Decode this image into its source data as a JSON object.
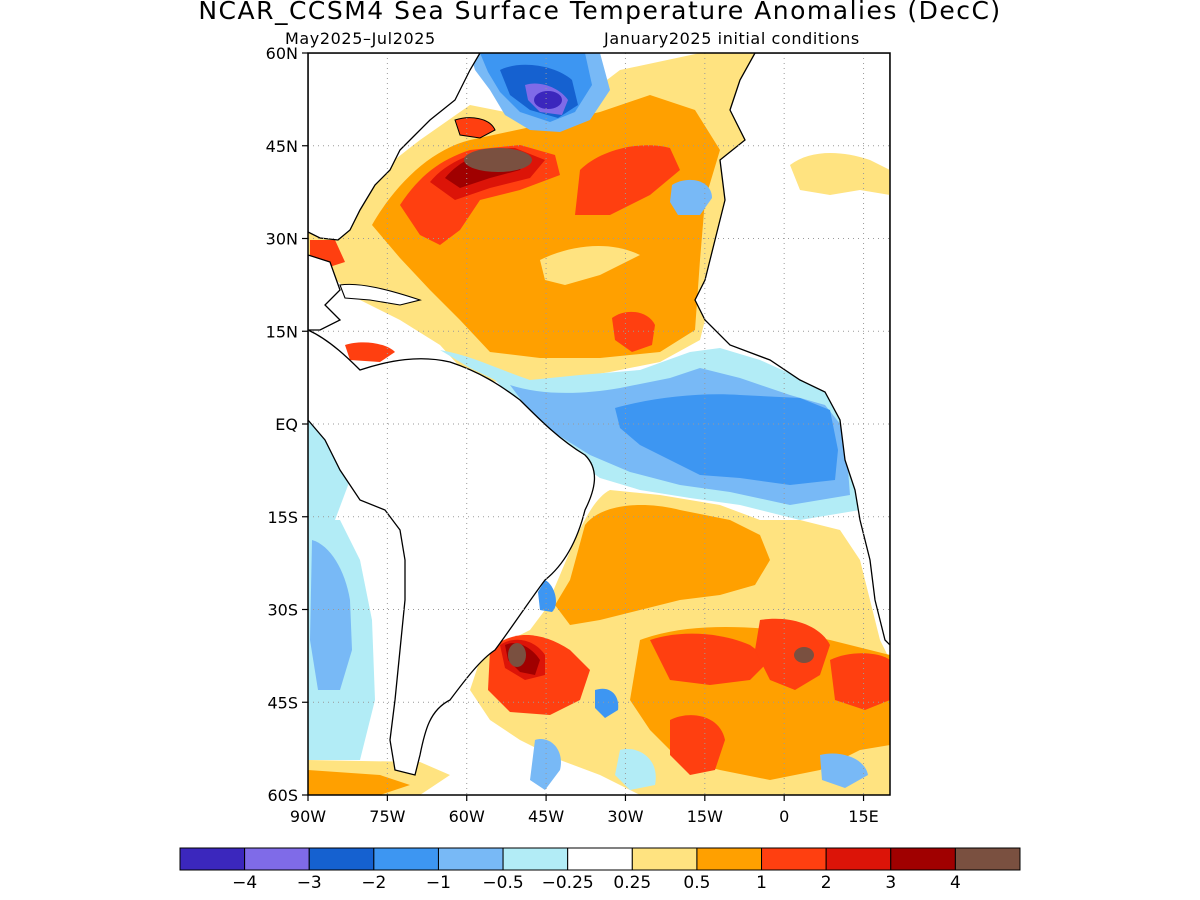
{
  "title": "NCAR_CCSM4 Sea Surface Temperature Anomalies (DecC)",
  "subtitle_left": "May2025–Jul2025",
  "subtitle_right": "January2025 initial conditions",
  "map": {
    "region": "Atlantic Ocean",
    "lon_range": [
      -90,
      20
    ],
    "lat_range": [
      -60,
      60
    ],
    "lon_ticks": [
      "90W",
      "75W",
      "60W",
      "45W",
      "30W",
      "15W",
      "0",
      "15E"
    ],
    "lat_ticks": [
      "60N",
      "45N",
      "30N",
      "15N",
      "EQ",
      "15S",
      "30S",
      "45S",
      "60S"
    ],
    "grid": "dotted"
  },
  "colorbar": {
    "colors": [
      "#3b27bd",
      "#7f6be8",
      "#1561d0",
      "#3d96f2",
      "#78b9f6",
      "#b2ecf6",
      "#ffffff",
      "#ffe380",
      "#ffa000",
      "#ff3f10",
      "#dc1408",
      "#a00000",
      "#7a5040"
    ],
    "labels": [
      "−4",
      "−3",
      "−2",
      "−1",
      "−0.5",
      "−0.25",
      "0.25",
      "0.5",
      "1",
      "2",
      "3",
      "4"
    ]
  },
  "anomaly_regions": [
    {
      "name": "North Atlantic warm anomaly",
      "level": 1
    },
    {
      "name": "Gulf Stream extension maximum",
      "level": 4
    },
    {
      "name": "Labrador Sea cold anomaly",
      "level": -3
    },
    {
      "name": "Equatorial Atlantic cold tongue",
      "level": -1
    },
    {
      "name": "South Atlantic warm anomaly",
      "level": 1
    },
    {
      "name": "Brazil-Malvinas confluence maximum",
      "level": 4
    },
    {
      "name": "Southern Ocean warm band",
      "level": 2
    }
  ]
}
